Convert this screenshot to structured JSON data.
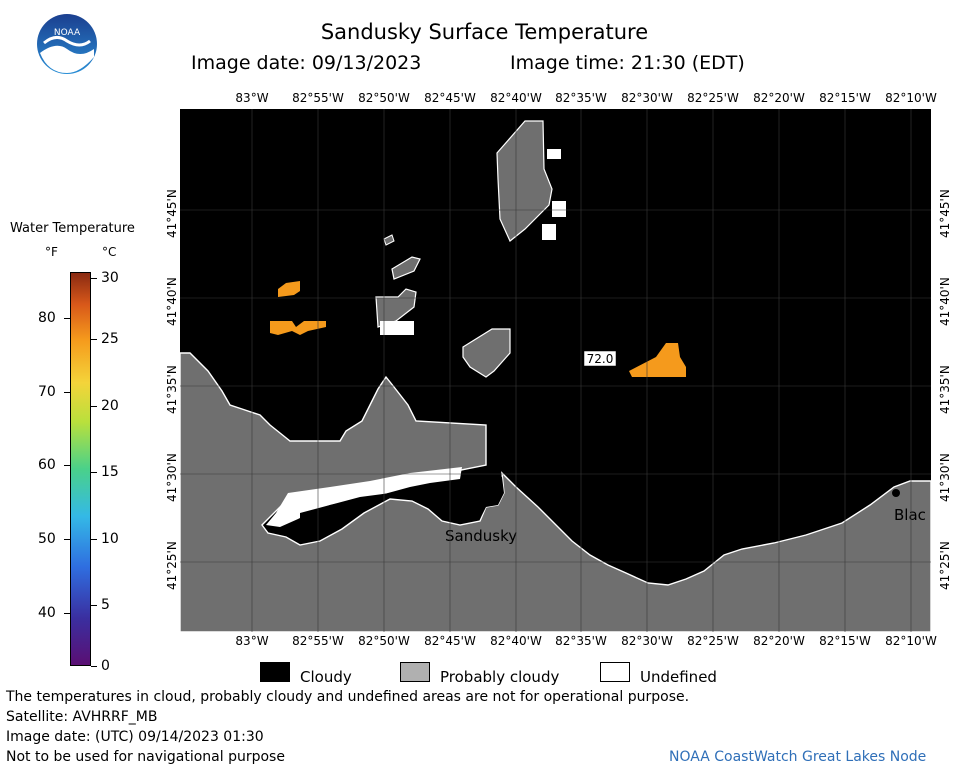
{
  "header": {
    "title": "Sandusky Surface Temperature",
    "image_date": "Image date: 09/13/2023",
    "image_time": "Image time: 21:30 (EDT)"
  },
  "logo": {
    "text": "NOAA",
    "icon": "noaa-logo-icon"
  },
  "colorbar": {
    "title": "Water Temperature",
    "unit_f": "°F",
    "unit_c": "°C",
    "f_ticks": [
      "80",
      "70",
      "60",
      "50",
      "40"
    ],
    "c_ticks": [
      "30",
      "25",
      "20",
      "15",
      "10",
      "5",
      "0"
    ]
  },
  "map": {
    "lon_labels": [
      "83°W",
      "82°55'W",
      "82°50'W",
      "82°45'W",
      "82°40'W",
      "82°35'W",
      "82°30'W",
      "82°25'W",
      "82°20'W",
      "82°15'W",
      "82°10'W"
    ],
    "lat_labels": [
      "41°45'N",
      "41°40'N",
      "41°35'N",
      "41°30'N",
      "41°25'N"
    ],
    "places": {
      "sandusky": "Sandusky",
      "blac": "Blac"
    },
    "temp_label": "72.0",
    "colors": {
      "cloudy": "#000000",
      "land": "#6f6f6f",
      "undefined": "#ffffff",
      "warm": "#f59a1c"
    }
  },
  "legend": {
    "cloudy": "Cloudy",
    "probably_cloudy": "Probably cloudy",
    "undefined": "Undefined"
  },
  "footer": {
    "disclaimer": "The temperatures in cloud, probably cloudy and undefined areas are not for operational purpose.",
    "satellite": "Satellite: AVHRRF_MB",
    "utc_date": "Image date: (UTC) 09/14/2023  01:30",
    "nav_warning": "Not to be used for navigational purpose",
    "credit": "NOAA CoastWatch Great Lakes Node"
  }
}
